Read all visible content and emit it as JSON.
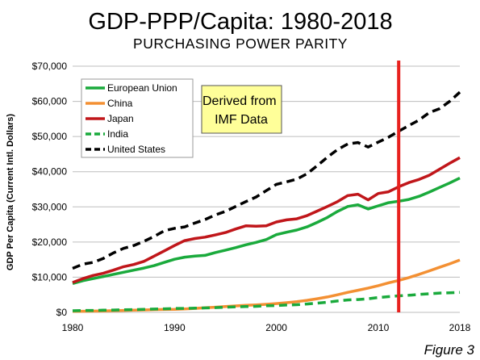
{
  "chart_data": {
    "type": "line",
    "title": "GDP-PPP/Capita: 1980-2018",
    "subtitle": "PURCHASING POWER PARITY",
    "xlabel": "",
    "ylabel": "GDP Per Capita (Current Intl. Dollars)",
    "xlim": [
      1980,
      2018
    ],
    "ylim": [
      0,
      70000
    ],
    "x_ticks": [
      "1980",
      "1990",
      "2000",
      "2010",
      "2018"
    ],
    "y_ticks": [
      "$0",
      "$10,000",
      "$20,000",
      "$30,000",
      "$40,000",
      "$50,000",
      "$60,000",
      "$70,000"
    ],
    "grid": "horizontal",
    "legend_position": "top-left",
    "annotation": "Derived from IMF Data",
    "vertical_marker": {
      "x": 2012,
      "color": "#e8211e"
    },
    "footer": "Figure 3",
    "x": [
      1980,
      1981,
      1982,
      1983,
      1984,
      1985,
      1986,
      1987,
      1988,
      1989,
      1990,
      1991,
      1992,
      1993,
      1994,
      1995,
      1996,
      1997,
      1998,
      1999,
      2000,
      2001,
      2002,
      2003,
      2004,
      2005,
      2006,
      2007,
      2008,
      2009,
      2010,
      2011,
      2012,
      2013,
      2014,
      2015,
      2016,
      2017,
      2018
    ],
    "series": [
      {
        "name": "European Union",
        "color": "#1aaa3c",
        "dash": "solid",
        "values": [
          8200,
          9000,
          9600,
          10200,
          10800,
          11400,
          12000,
          12600,
          13300,
          14200,
          15100,
          15700,
          16000,
          16200,
          17000,
          17700,
          18400,
          19200,
          19900,
          20700,
          22100,
          22800,
          23400,
          24300,
          25600,
          27000,
          28700,
          30100,
          30600,
          29400,
          30300,
          31200,
          31600,
          32100,
          33000,
          34200,
          35500,
          36800,
          38200
        ]
      },
      {
        "name": "China",
        "color": "#f39033",
        "dash": "solid",
        "values": [
          300,
          330,
          370,
          420,
          490,
          560,
          620,
          690,
          780,
          820,
          880,
          980,
          1130,
          1300,
          1480,
          1650,
          1830,
          1990,
          2130,
          2300,
          2500,
          2750,
          3050,
          3430,
          3870,
          4380,
          5000,
          5700,
          6300,
          6900,
          7600,
          8400,
          9100,
          9900,
          10800,
          11800,
          12800,
          13800,
          14900
        ]
      },
      {
        "name": "Japan",
        "color": "#c0161a",
        "dash": "solid",
        "values": [
          8500,
          9600,
          10500,
          11100,
          12000,
          13000,
          13600,
          14500,
          16000,
          17500,
          19000,
          20400,
          21000,
          21400,
          22000,
          22700,
          23700,
          24600,
          24500,
          24600,
          25700,
          26300,
          26600,
          27500,
          28800,
          30100,
          31500,
          33200,
          33600,
          32000,
          33800,
          34300,
          35700,
          36900,
          37800,
          39000,
          40700,
          42400,
          44000
        ]
      },
      {
        "name": "India",
        "color": "#1aaa3c",
        "dash": "dashed",
        "values": [
          450,
          520,
          560,
          610,
          670,
          730,
          790,
          850,
          940,
          1020,
          1100,
          1130,
          1200,
          1270,
          1360,
          1470,
          1580,
          1660,
          1730,
          1880,
          1960,
          2080,
          2170,
          2380,
          2620,
          2900,
          3230,
          3540,
          3660,
          3870,
          4220,
          4480,
          4700,
          4860,
          5100,
          5300,
          5480,
          5580,
          5700
        ]
      },
      {
        "name": "United States",
        "color": "#000000",
        "dash": "dashed",
        "values": [
          12500,
          13700,
          14200,
          15300,
          16900,
          18200,
          19000,
          20200,
          21600,
          23200,
          23900,
          24300,
          25400,
          26400,
          27700,
          28700,
          30100,
          31500,
          32800,
          34600,
          36400,
          37100,
          37900,
          39400,
          41700,
          44100,
          46300,
          47900,
          48300,
          47000,
          48400,
          49800,
          51500,
          53100,
          54700,
          56800,
          57900,
          60000,
          62600
        ]
      }
    ]
  }
}
